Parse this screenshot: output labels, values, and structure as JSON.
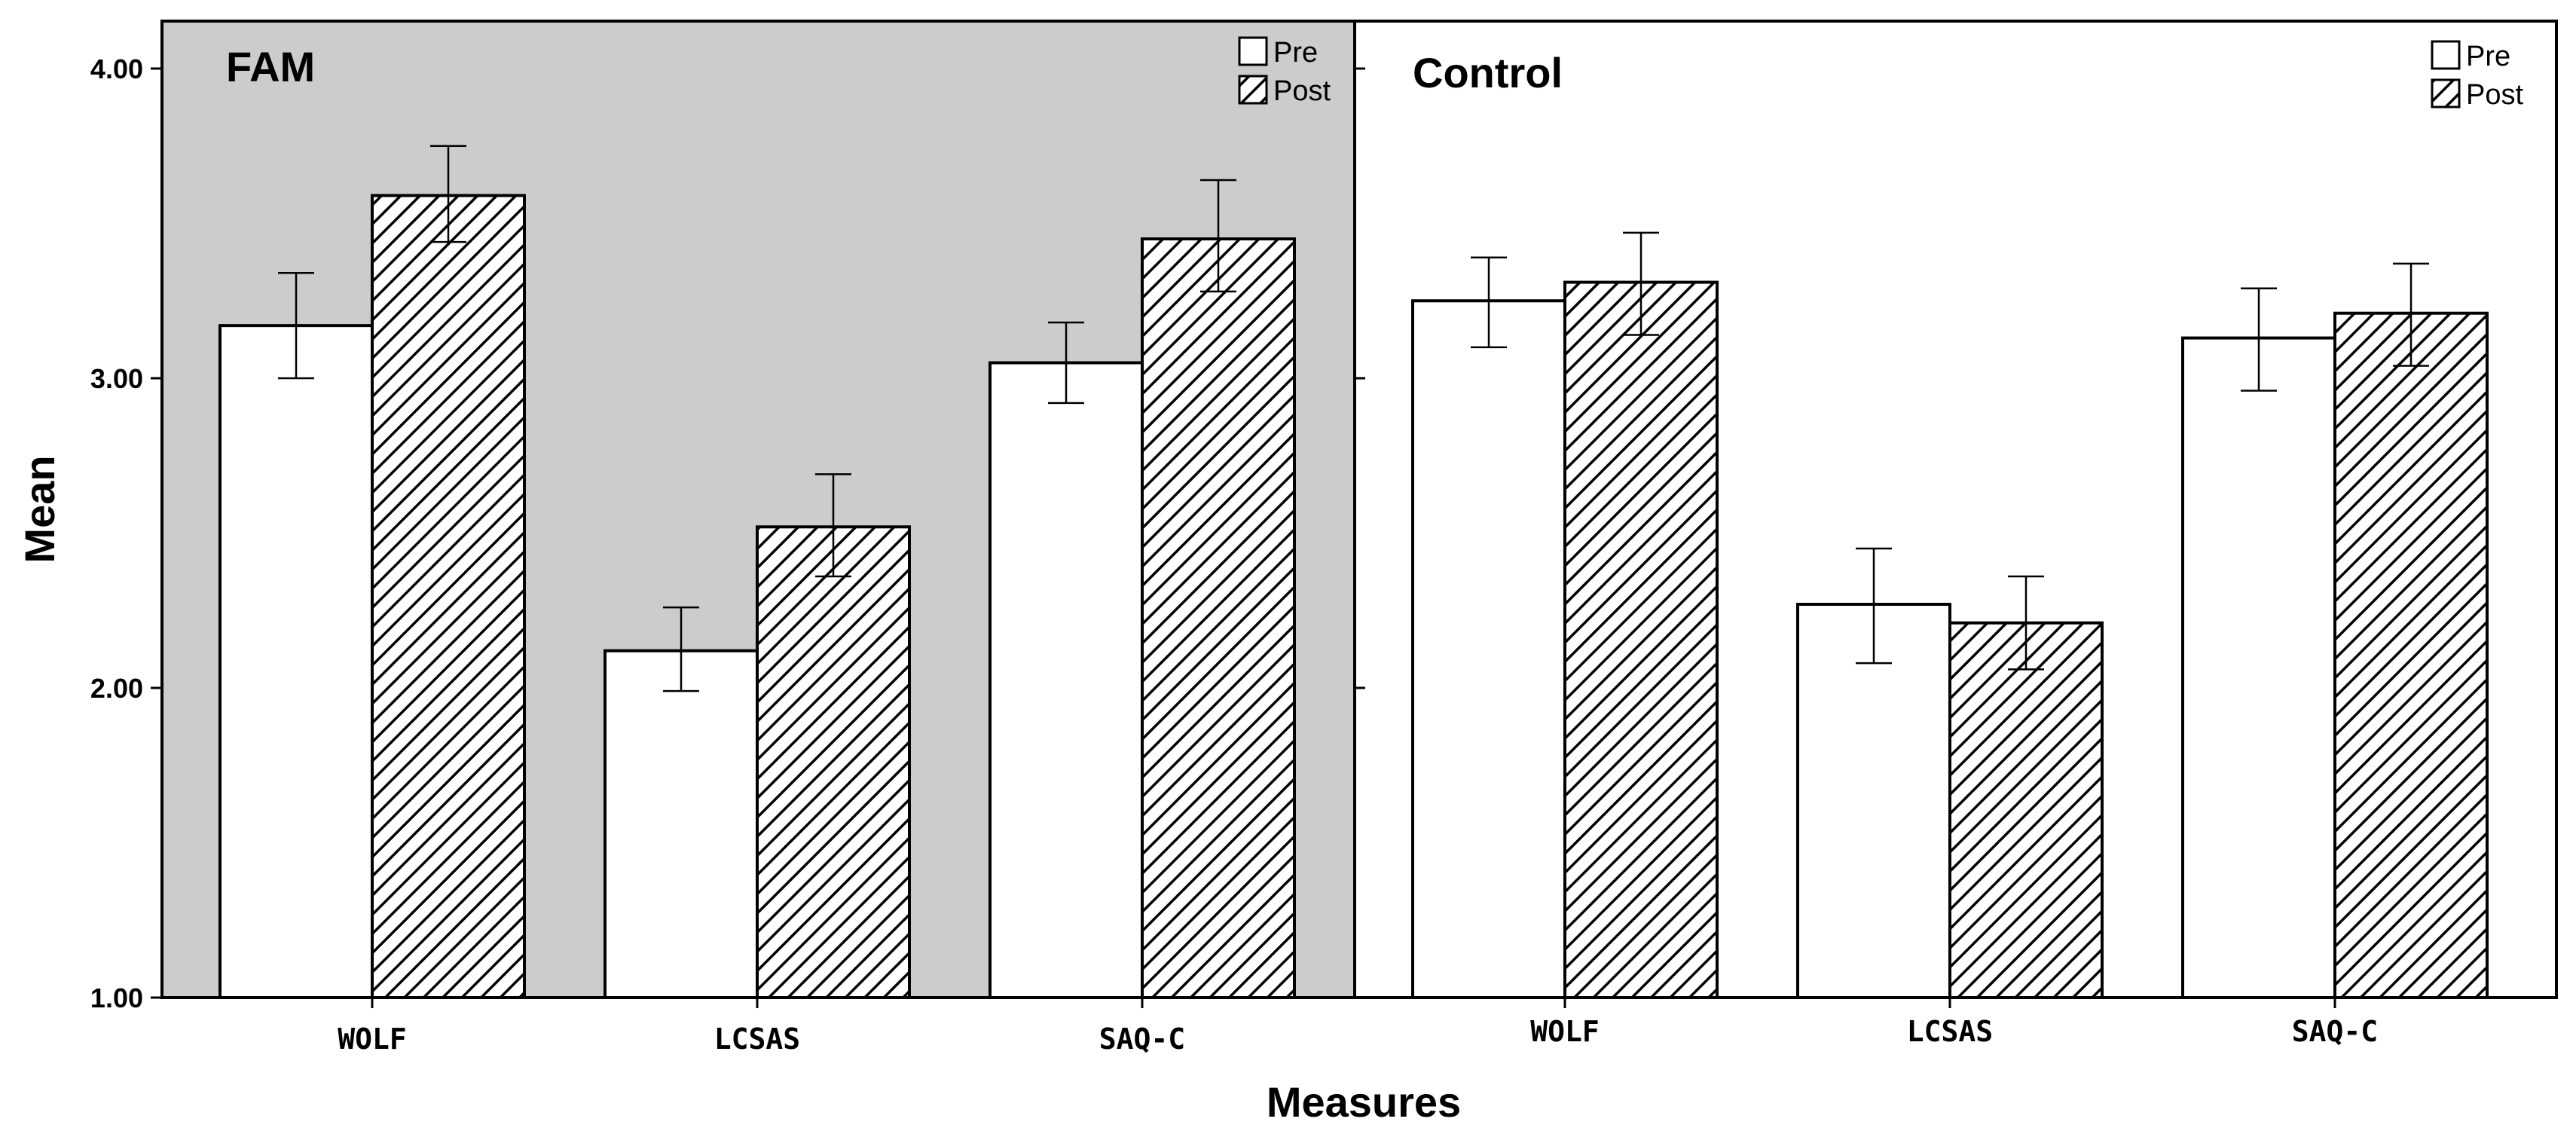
{
  "chart_data": {
    "type": "bar",
    "xlabel": "Measures",
    "ylabel": "Mean",
    "ylim": [
      1,
      4.15
    ],
    "yticks": [
      "1.00",
      "2.00",
      "3.00",
      "4.00"
    ],
    "yticks_values": [
      1,
      2,
      3,
      4
    ],
    "categories": [
      "WOLF",
      "LCSAS",
      "SAQ-C"
    ],
    "legend": {
      "placement": "top-right",
      "entries": [
        "Pre",
        "Post"
      ]
    },
    "colors": {
      "panel1_bg": "#cccccc",
      "panel2_bg": "#ffffff",
      "pre_fill": "#ffffff",
      "post_hatch": "#000000"
    },
    "panels": [
      {
        "title": "FAM",
        "series": [
          {
            "name": "Pre",
            "values": [
              3.17,
              2.12,
              3.05
            ],
            "err_low": [
              3.0,
              1.99,
              2.92
            ],
            "err_high": [
              3.34,
              2.26,
              3.18
            ]
          },
          {
            "name": "Post",
            "values": [
              3.59,
              2.52,
              3.45
            ],
            "err_low": [
              3.44,
              2.36,
              3.28
            ],
            "err_high": [
              3.75,
              2.69,
              3.64
            ]
          }
        ]
      },
      {
        "title": "Control",
        "series": [
          {
            "name": "Pre",
            "values": [
              3.25,
              2.27,
              3.13
            ],
            "err_low": [
              3.1,
              2.08,
              2.96
            ],
            "err_high": [
              3.39,
              2.45,
              3.29
            ]
          },
          {
            "name": "Post",
            "values": [
              3.31,
              2.21,
              3.21
            ],
            "err_low": [
              3.14,
              2.06,
              3.04
            ],
            "err_high": [
              3.47,
              2.36,
              3.37
            ]
          }
        ]
      }
    ]
  }
}
